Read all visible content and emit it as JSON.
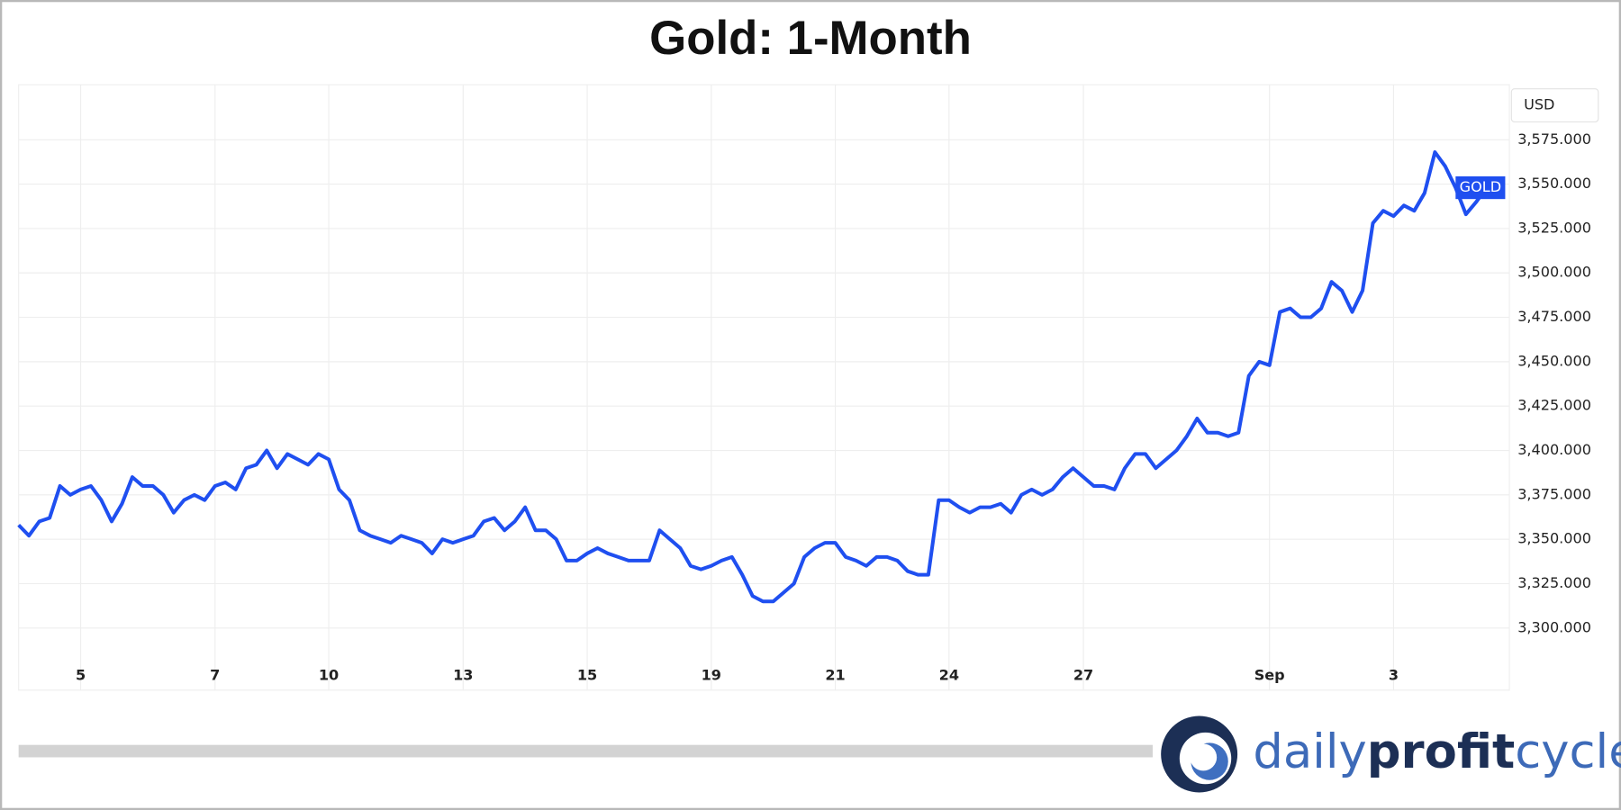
{
  "chart_data": {
    "type": "line",
    "title": "Gold: 1-Month",
    "unit": "USD",
    "categories": [
      null,
      null,
      null,
      null,
      null,
      null,
      "5",
      null,
      null,
      null,
      null,
      null,
      null,
      null,
      null,
      null,
      null,
      null,
      null,
      "7",
      null,
      null,
      null,
      null,
      null,
      null,
      null,
      null,
      null,
      null,
      "10",
      null,
      null,
      null,
      null,
      null,
      null,
      null,
      null,
      null,
      null,
      null,
      null,
      "13",
      null,
      null,
      null,
      null,
      null,
      null,
      null,
      null,
      null,
      null,
      null,
      "15",
      null,
      null,
      null,
      null,
      null,
      null,
      null,
      null,
      null,
      null,
      null,
      "19",
      null,
      null,
      null,
      null,
      null,
      null,
      null,
      null,
      null,
      null,
      null,
      "21",
      null,
      null,
      null,
      null,
      null,
      null,
      null,
      null,
      null,
      null,
      "24",
      null,
      null,
      null,
      null,
      null,
      null,
      null,
      null,
      null,
      null,
      null,
      null,
      "27",
      null,
      null,
      null,
      null,
      null,
      null,
      null,
      null,
      null,
      null,
      null,
      null,
      null,
      null,
      null,
      null,
      null,
      "Sep",
      null,
      null,
      null,
      null,
      null,
      null,
      null,
      null,
      null,
      null,
      null,
      "3",
      null,
      null,
      null,
      null,
      null,
      null,
      null,
      null,
      null
    ],
    "series": [
      {
        "name": "GOLD",
        "color": "#1f4ff0",
        "values": [
          3358,
          3352,
          3360,
          3362,
          3380,
          3375,
          3378,
          3380,
          3372,
          3360,
          3370,
          3385,
          3380,
          3380,
          3375,
          3365,
          3372,
          3375,
          3372,
          3380,
          3382,
          3378,
          3390,
          3392,
          3400,
          3390,
          3398,
          3395,
          3392,
          3398,
          3395,
          3378,
          3372,
          3355,
          3352,
          3350,
          3348,
          3352,
          3350,
          3348,
          3342,
          3350,
          3348,
          3350,
          3352,
          3360,
          3362,
          3355,
          3360,
          3368,
          3355,
          3355,
          3350,
          3338,
          3338,
          3342,
          3345,
          3342,
          3340,
          3338,
          3338,
          3338,
          3355,
          3350,
          3345,
          3335,
          3333,
          3335,
          3338,
          3340,
          3330,
          3318,
          3315,
          3315,
          3320,
          3325,
          3340,
          3345,
          3348,
          3348,
          3340,
          3338,
          3335,
          3340,
          3340,
          3338,
          3332,
          3330,
          3330,
          3372,
          3372,
          3368,
          3365,
          3368,
          3368,
          3370,
          3365,
          3375,
          3378,
          3375,
          3378,
          3385,
          3390,
          3385,
          3380,
          3380,
          3378,
          3390,
          3398,
          3398,
          3390,
          3395,
          3400,
          3408,
          3418,
          3410,
          3410,
          3408,
          3410,
          3442,
          3450,
          3448,
          3478,
          3480,
          3475,
          3475,
          3480,
          3495,
          3490,
          3478,
          3490,
          3528,
          3535,
          3532,
          3538,
          3535,
          3545,
          3568,
          3560,
          3548,
          3533,
          3540,
          3548
        ]
      }
    ],
    "ylim": [
      3265,
      3606
    ],
    "yticks": [
      {
        "value": 3300,
        "label": "3,300.000"
      },
      {
        "value": 3325,
        "label": "3,325.000"
      },
      {
        "value": 3350,
        "label": "3,350.000"
      },
      {
        "value": 3375,
        "label": "3,375.000"
      },
      {
        "value": 3400,
        "label": "3,400.000"
      },
      {
        "value": 3425,
        "label": "3,425.000"
      },
      {
        "value": 3450,
        "label": "3,450.000"
      },
      {
        "value": 3475,
        "label": "3,475.000"
      },
      {
        "value": 3500,
        "label": "3,500.000"
      },
      {
        "value": 3525,
        "label": "3,525.000"
      },
      {
        "value": 3550,
        "label": "3,550.000"
      },
      {
        "value": 3575,
        "label": "3,575.000"
      }
    ],
    "grid": true
  },
  "brand": {
    "daily": "daily",
    "profit": "profit",
    "cycle": "cycle"
  }
}
